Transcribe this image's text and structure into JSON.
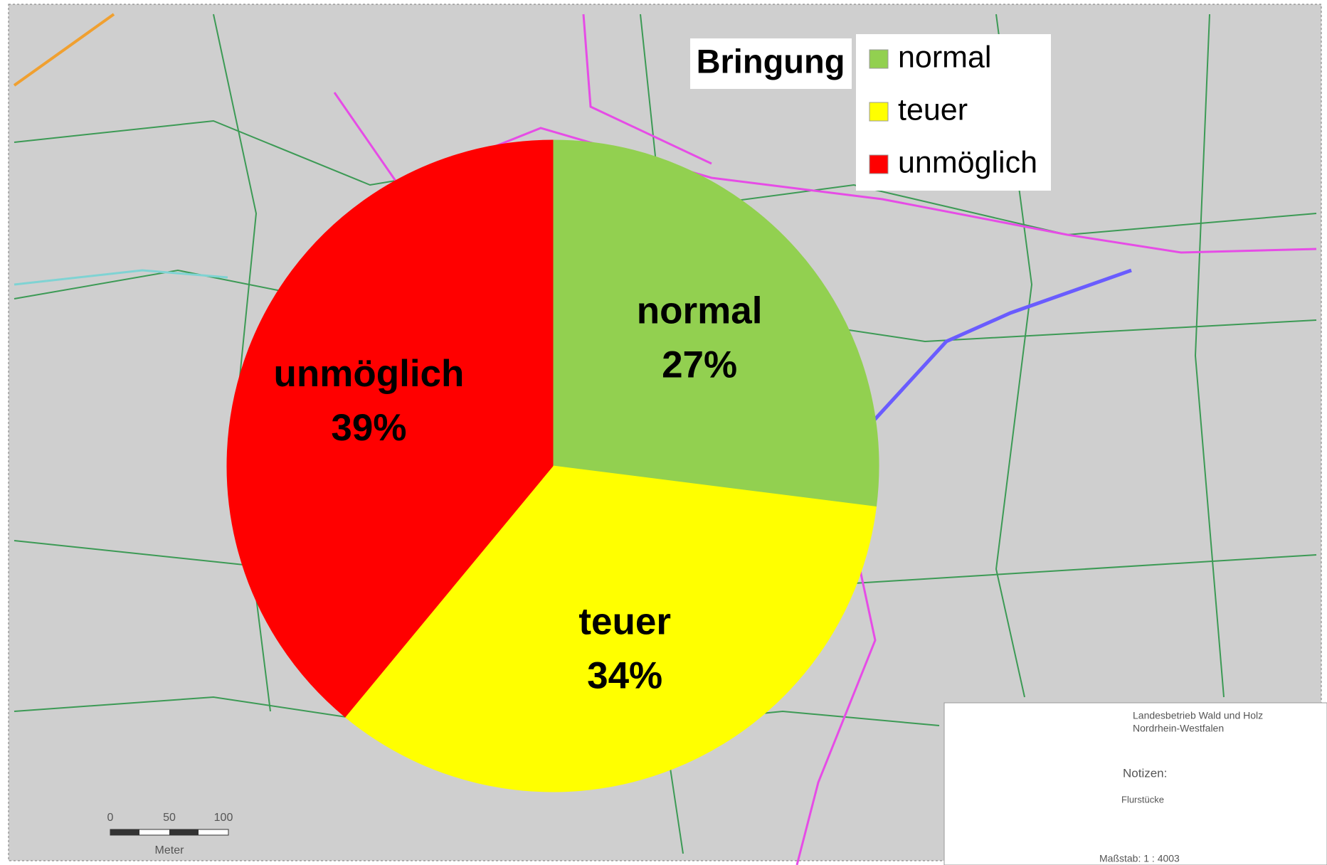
{
  "chart_data": {
    "type": "pie",
    "title": "Bringung",
    "categories": [
      "normal",
      "teuer",
      "unmöglich"
    ],
    "values": [
      27,
      34,
      39
    ],
    "value_labels": [
      "27%",
      "34%",
      "39%"
    ],
    "colors": [
      "#92d050",
      "#ffff00",
      "#ff0000"
    ],
    "start_angle": 0,
    "direction": "clockwise",
    "legend": "top-right"
  },
  "map": {
    "info_box": {
      "agency": [
        "Landesbetrieb Wald und Holz",
        "Nordrhein-Westfalen"
      ],
      "notes": "Notizen:",
      "layer": "Flurstücke",
      "scale": "Maßstab: 1 : 4003"
    },
    "scale_bar": {
      "ticks": [
        "0",
        "50",
        "100"
      ],
      "unit": "Meter"
    }
  }
}
